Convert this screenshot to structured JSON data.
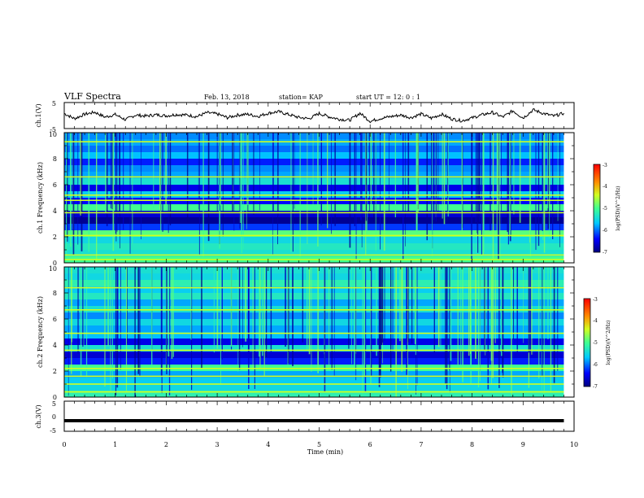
{
  "header": {
    "title": "VLF Spectra",
    "date": "Feb. 13, 2018",
    "station": "station= KAP",
    "start": "start  UT =   12: 0  : 1"
  },
  "chart_data": [
    {
      "type": "line",
      "name": "ch1-waveform",
      "ylabel": "ch.1(V)",
      "yticks": [
        "5",
        "-5"
      ],
      "ylim": [
        -5,
        5
      ],
      "xlim": [
        0,
        10
      ],
      "x": [
        0,
        0.2,
        0.4,
        0.6,
        0.8,
        1.0,
        1.2,
        1.4,
        1.6,
        1.8,
        2.0,
        2.2,
        2.4,
        2.6,
        2.8,
        3.0,
        3.2,
        3.4,
        3.6,
        3.8,
        4.0,
        4.2,
        4.4,
        4.6,
        4.8,
        5.0,
        5.2,
        5.4,
        5.6,
        5.8,
        6.0,
        6.2,
        6.4,
        6.6,
        6.8,
        7.0,
        7.2,
        7.4,
        7.6,
        7.8,
        8.0,
        8.2,
        8.4,
        8.6,
        8.8,
        9.0,
        9.2,
        9.4,
        9.6,
        9.8
      ],
      "y": [
        0.8,
        -1.2,
        0.5,
        1.3,
        -0.6,
        0.4,
        -1.6,
        0.2,
        -0.2,
        0.3,
        -0.1,
        0.4,
        0.2,
        -0.4,
        1.1,
        0.6,
        -0.8,
        0.2,
        0.5,
        -0.3,
        0.9,
        1.5,
        0.4,
        -0.7,
        -1.2,
        0.8,
        -0.5,
        -1.4,
        -1.8,
        0.9,
        -2.2,
        -1.1,
        -0.4,
        0.2,
        -0.8,
        0.6,
        -1.0,
        0.5,
        -1.3,
        -2.0,
        -0.9,
        0.3,
        1.2,
        -0.6,
        1.8,
        -0.9,
        2.2,
        0.8,
        -0.2,
        0.9
      ]
    },
    {
      "type": "heatmap",
      "name": "ch1-spectrogram",
      "ylabel": "ch.1  Frequency  (kHz)",
      "yticks": [
        "0",
        "2",
        "4",
        "6",
        "8",
        "10"
      ],
      "ylim": [
        0,
        10
      ],
      "xlim": [
        0,
        9.8
      ],
      "color_scale": {
        "label": "log(PSD)(V^2/Hz)",
        "ticks": [
          "-3",
          "-4",
          "-5",
          "-6",
          "-7"
        ],
        "range": [
          -7,
          -3
        ]
      },
      "frequency_bands_khz": [
        0,
        0.5,
        1.0,
        1.5,
        2.0,
        2.5,
        3.0,
        3.5,
        4.0,
        4.5,
        5.0,
        5.5,
        6.0,
        6.5,
        7.0,
        7.5,
        8.0,
        8.5,
        9.0,
        9.5
      ],
      "band_log_psd": [
        -5.0,
        -5.4,
        -5.3,
        -5.5,
        -4.9,
        -6.2,
        -6.9,
        -6.6,
        -5.0,
        -6.4,
        -5.6,
        -6.5,
        -5.4,
        -5.8,
        -5.9,
        -6.3,
        -5.7,
        -6.0,
        -5.8,
        -5.9
      ],
      "line_frequencies_khz": [
        0.25,
        0.6,
        2.1,
        3.85,
        4.8,
        5.2,
        6.6,
        9.3
      ]
    },
    {
      "type": "heatmap",
      "name": "ch2-spectrogram",
      "ylabel": "ch.2  Frequency  (kHz)",
      "yticks": [
        "0",
        "2",
        "4",
        "6",
        "8",
        "10"
      ],
      "ylim": [
        0,
        10
      ],
      "xlim": [
        0,
        9.8
      ],
      "color_scale": {
        "label": "log(PSD)(V^2/Hz)",
        "ticks": [
          "-3",
          "-4",
          "-5",
          "-6",
          "-7"
        ],
        "range": [
          -7,
          -3
        ]
      },
      "frequency_bands_khz": [
        0,
        0.5,
        1.0,
        1.5,
        2.0,
        2.5,
        3.0,
        3.5,
        4.0,
        4.5,
        5.0,
        5.5,
        6.0,
        6.5,
        7.0,
        7.5,
        8.0,
        8.5,
        9.0,
        9.5
      ],
      "band_log_psd": [
        -5.2,
        -5.5,
        -5.6,
        -5.8,
        -5.0,
        -6.3,
        -6.6,
        -5.4,
        -6.5,
        -5.7,
        -5.8,
        -5.5,
        -5.9,
        -5.4,
        -5.8,
        -5.3,
        -5.6,
        -5.2,
        -5.5,
        -5.4
      ],
      "line_frequencies_khz": [
        0.4,
        1.0,
        1.6,
        2.2,
        3.6,
        4.9,
        6.7,
        8.4
      ]
    },
    {
      "type": "line",
      "name": "ch3-waveform",
      "ylabel": "ch.3(V)",
      "yticks": [
        "5",
        "0",
        "-5"
      ],
      "ylim": [
        -5,
        5
      ],
      "xlim": [
        0,
        9.8
      ],
      "x": [
        0,
        9.8
      ],
      "y": [
        -1.5,
        -1.5
      ]
    }
  ],
  "x_axis": {
    "label": "Time  (min)",
    "ticks": [
      "0",
      "1",
      "2",
      "3",
      "4",
      "5",
      "6",
      "7",
      "8",
      "9",
      "10"
    ],
    "range": [
      0,
      10
    ]
  },
  "colors": {
    "line": "#000000",
    "frame": "#000000"
  }
}
